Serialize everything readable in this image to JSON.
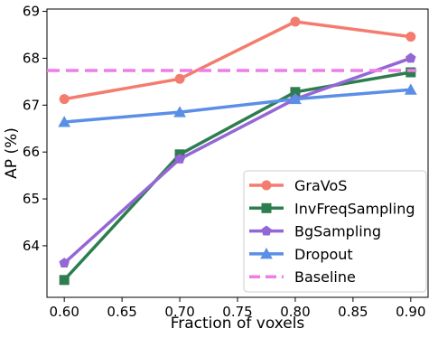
{
  "chart_data": {
    "type": "line",
    "title": "",
    "xlabel": "Fraction of voxels",
    "ylabel": "AP (%)",
    "x": [
      0.6,
      0.7,
      0.8,
      0.9
    ],
    "xlim": [
      0.585,
      0.915
    ],
    "ylim": [
      62.9,
      69.05
    ],
    "xticks": [
      "0.60",
      "0.65",
      "0.70",
      "0.75",
      "0.80",
      "0.85",
      "0.90"
    ],
    "xtick_values": [
      0.6,
      0.65,
      0.7,
      0.75,
      0.8,
      0.85,
      0.9
    ],
    "yticks": [
      "64",
      "65",
      "66",
      "67",
      "68",
      "69"
    ],
    "ytick_values": [
      64,
      65,
      66,
      67,
      68,
      69
    ],
    "grid": false,
    "legend_position": "bottom-right",
    "series": [
      {
        "name": "GraVoS",
        "values": [
          67.13,
          67.56,
          68.78,
          68.46
        ],
        "color": "#f47c6e",
        "marker": "circle",
        "dashed": false
      },
      {
        "name": "InvFreqSampling",
        "values": [
          63.27,
          65.95,
          67.28,
          67.7
        ],
        "color": "#2e7d4f",
        "marker": "square",
        "dashed": false
      },
      {
        "name": "BgSampling",
        "values": [
          63.63,
          65.85,
          67.13,
          68.0
        ],
        "color": "#9467d6",
        "marker": "pentagon",
        "dashed": false
      },
      {
        "name": "Dropout",
        "values": [
          66.64,
          66.85,
          67.13,
          67.33
        ],
        "color": "#5b8fe6",
        "marker": "triangle",
        "dashed": false
      },
      {
        "name": "Baseline",
        "values": [
          67.74,
          67.74,
          67.74,
          67.74
        ],
        "color": "#ee7de8",
        "marker": "none",
        "dashed": true,
        "x_range": [
          0.585,
          0.905
        ]
      }
    ]
  }
}
